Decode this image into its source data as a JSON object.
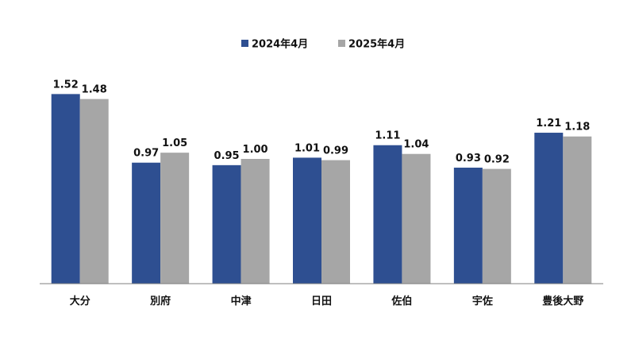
{
  "chart_data": {
    "type": "bar",
    "categories": [
      "大分",
      "別府",
      "中津",
      "日田",
      "佐伯",
      "宇佐",
      "豊後大野"
    ],
    "series": [
      {
        "name": "2024年4月",
        "values": [
          1.52,
          0.97,
          0.95,
          1.01,
          1.11,
          0.93,
          1.21
        ],
        "color": "#2E4F91"
      },
      {
        "name": "2025年4月",
        "values": [
          1.48,
          1.05,
          1.0,
          0.99,
          1.04,
          0.92,
          1.18
        ],
        "color": "#A6A6A6"
      }
    ],
    "value_labels": [
      [
        "1.52",
        "0.97",
        "0.95",
        "1.01",
        "1.11",
        "0.93",
        "1.21"
      ],
      [
        "1.48",
        "1.05",
        "1.00",
        "0.99",
        "1.04",
        "0.92",
        "1.18"
      ]
    ],
    "ylim": [
      0,
      1.6
    ],
    "grid": false,
    "legend_position": "top-center",
    "axis_color": "#7F7F7F"
  }
}
